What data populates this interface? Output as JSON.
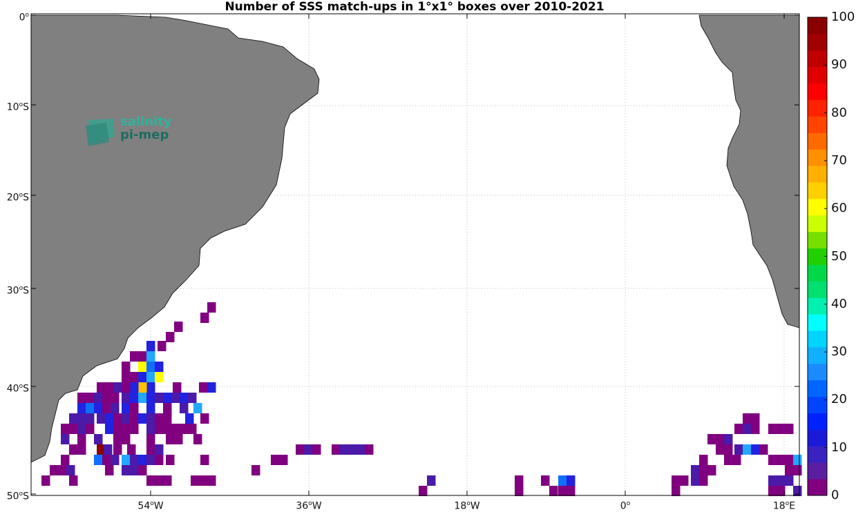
{
  "title": "Number of SSS match-ups in 1°x1° boxes over 2010-2021",
  "logo": {
    "line1": "salinity",
    "line2": "pi-mep"
  },
  "lat_labels": [
    {
      "deg": "0",
      "hemi": ""
    },
    {
      "deg": "10",
      "hemi": "S"
    },
    {
      "deg": "20",
      "hemi": "S"
    },
    {
      "deg": "30",
      "hemi": "S"
    },
    {
      "deg": "40",
      "hemi": "S"
    },
    {
      "deg": "50",
      "hemi": "S"
    }
  ],
  "lon_labels": [
    {
      "deg": "54",
      "hemi": "W"
    },
    {
      "deg": "36",
      "hemi": "W"
    },
    {
      "deg": "18",
      "hemi": "W"
    },
    {
      "deg": "0",
      "hemi": ""
    },
    {
      "deg": "18",
      "hemi": "E"
    }
  ],
  "colorbar": {
    "ticks": [
      "0",
      "10",
      "20",
      "30",
      "40",
      "50",
      "60",
      "70",
      "80",
      "90",
      "100"
    ],
    "colors": [
      "#800080",
      "#5b1ea0",
      "#3a22c0",
      "#1a1ad8",
      "#0022ff",
      "#0044ff",
      "#0066ff",
      "#1a8cff",
      "#10b0ff",
      "#00d4ff",
      "#00ffff",
      "#00f0b0",
      "#00e070",
      "#00d84a",
      "#22d000",
      "#77e000",
      "#ccff00",
      "#ffff00",
      "#ffd000",
      "#ffb000",
      "#ff9000",
      "#ff6a00",
      "#ff4400",
      "#ff2200",
      "#ff0000",
      "#e00000",
      "#c00000",
      "#a00000",
      "#8a0000"
    ]
  },
  "land_color": "#808080"
}
